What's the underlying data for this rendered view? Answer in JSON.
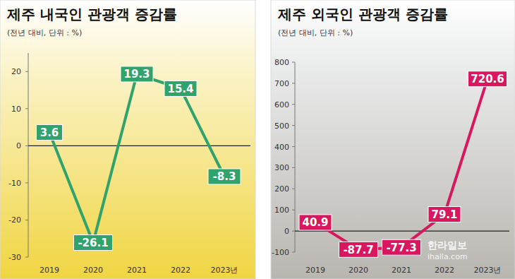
{
  "chart_data": [
    {
      "type": "line",
      "title": "제주 내국인 관광객 증감률",
      "subtitle": "(전년 대비, 단위 : %)",
      "categories": [
        "2019",
        "2020",
        "2021",
        "2022",
        "2023년"
      ],
      "values": [
        3.6,
        -26.1,
        19.3,
        15.4,
        -8.3
      ],
      "color": "#2fa36b",
      "ylim": [
        -30,
        25
      ],
      "yticks": [
        -30,
        -20,
        -10,
        0,
        10,
        20
      ],
      "grid": false,
      "data_labels": true
    },
    {
      "type": "line",
      "title": "제주 외국인 관광객 증감률",
      "subtitle": "(전년 대비, 단위 : %)",
      "categories": [
        "2019",
        "2020",
        "2021",
        "2022",
        "2023년"
      ],
      "values": [
        40.9,
        -87.7,
        -77.3,
        79.1,
        720.6
      ],
      "color": "#d8175f",
      "ylim": [
        -100,
        800
      ],
      "yticks": [
        -100,
        0,
        100,
        200,
        300,
        400,
        500,
        600,
        700,
        800
      ],
      "grid": false,
      "data_labels": true
    }
  ],
  "watermark": {
    "name": "한라일보",
    "url": "ihalla.com"
  }
}
